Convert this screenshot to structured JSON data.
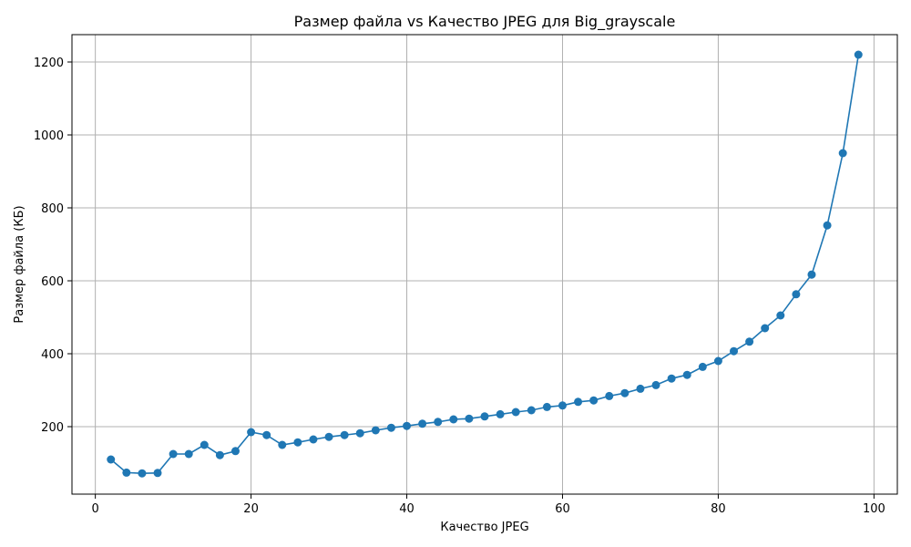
{
  "chart_data": {
    "type": "line",
    "title": "Размер файла vs Качество JPEG для Big_grayscale",
    "xlabel": "Качество JPEG",
    "ylabel": "Размер файла (КБ)",
    "xlim": [
      -3,
      103
    ],
    "ylim": [
      15,
      1275
    ],
    "xticks": [
      0,
      20,
      40,
      60,
      80,
      100
    ],
    "yticks": [
      200,
      400,
      600,
      800,
      1000,
      1200
    ],
    "grid": true,
    "series": [
      {
        "color": "#1f77b4",
        "marker": "circle",
        "x": [
          2,
          4,
          6,
          8,
          10,
          12,
          14,
          16,
          18,
          20,
          22,
          24,
          26,
          28,
          30,
          32,
          34,
          36,
          38,
          40,
          42,
          44,
          46,
          48,
          50,
          52,
          54,
          56,
          58,
          60,
          62,
          64,
          66,
          68,
          70,
          72,
          74,
          76,
          78,
          80,
          82,
          84,
          86,
          88,
          90,
          92,
          94,
          96,
          98
        ],
        "y": [
          110,
          74,
          72,
          73,
          125,
          125,
          150,
          122,
          133,
          185,
          177,
          150,
          157,
          165,
          172,
          177,
          182,
          190,
          197,
          202,
          208,
          213,
          220,
          222,
          228,
          234,
          240,
          245,
          254,
          258,
          268,
          272,
          284,
          292,
          304,
          314,
          332,
          342,
          364,
          380,
          407,
          433,
          470,
          505,
          563,
          617,
          752,
          950,
          1220
        ]
      }
    ]
  }
}
